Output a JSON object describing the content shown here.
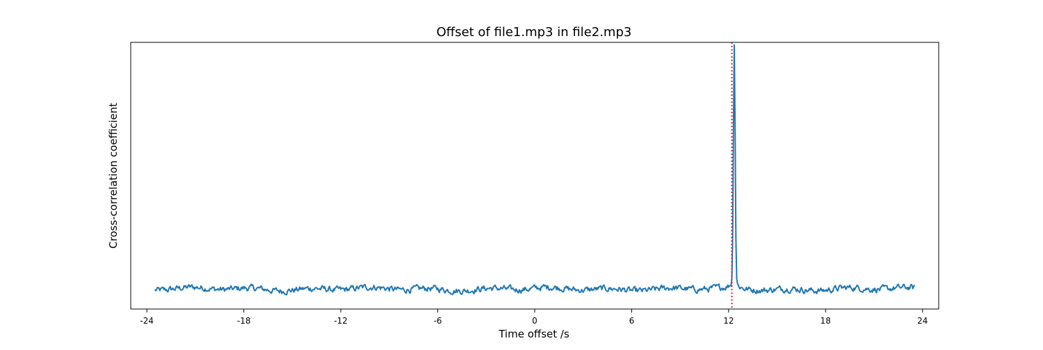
{
  "chart_data": {
    "type": "line",
    "title": "Offset of file1.mp3 in file2.mp3",
    "xlabel": "Time offset /s",
    "ylabel": "Cross-correlation coefficient",
    "xlim": [
      -25.0,
      25.0
    ],
    "ylim": [
      0.0,
      1.0
    ],
    "x_ticks": [
      -24,
      -18,
      -12,
      -6,
      0,
      6,
      12,
      18,
      24
    ],
    "x_tick_labels": [
      "-24",
      "-18",
      "-12",
      "-6",
      "0",
      "6",
      "12",
      "18",
      "24"
    ],
    "y_ticks": [],
    "grid": false,
    "legend": "none",
    "series": [
      {
        "color": "#1f77b4",
        "x_range": [
          -23.5,
          23.5
        ],
        "baseline": 0.075,
        "noise_amplitude": 0.012,
        "peak": {
          "x": 12.35,
          "y": 0.955,
          "half_width_s": 0.1
        }
      }
    ],
    "annotations": [
      {
        "type": "vline",
        "x": 12.2,
        "style": "dotted",
        "color": "#d62728"
      }
    ]
  }
}
